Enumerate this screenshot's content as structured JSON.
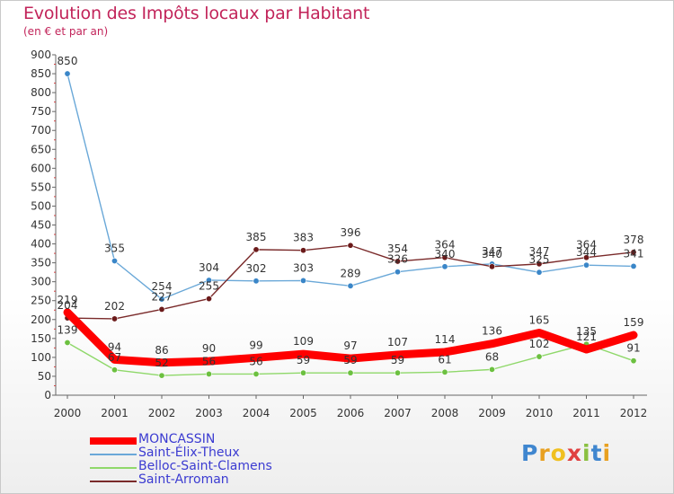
{
  "header": {
    "title": "Evolution des Impôts locaux par Habitant",
    "subtitle": "(en € et par an)"
  },
  "brand": {
    "letters": [
      "P",
      "r",
      "o",
      "x",
      "i",
      "t",
      "i"
    ]
  },
  "chart_data": {
    "type": "line",
    "title": "Evolution des Impôts locaux par Habitant",
    "subtitle": "(en € et par an)",
    "xlabel": "",
    "ylabel": "",
    "ylim": [
      0,
      900
    ],
    "yticks": [
      0,
      50,
      100,
      150,
      200,
      250,
      300,
      350,
      400,
      450,
      500,
      550,
      600,
      650,
      700,
      750,
      800,
      850,
      900
    ],
    "grid": false,
    "legend_position": "bottom-left",
    "x": [
      "2000",
      "2001",
      "2002",
      "2003",
      "2004",
      "2005",
      "2006",
      "2007",
      "2008",
      "2009",
      "2010",
      "2011",
      "2012"
    ],
    "series": [
      {
        "name": "MONCASSIN",
        "color": "#ff0000",
        "values": [
          219,
          94,
          86,
          90,
          99,
          109,
          97,
          107,
          114,
          136,
          165,
          121,
          159
        ],
        "labels": [
          "219",
          "94",
          "86",
          "90",
          "99",
          "109",
          "97",
          "107",
          "114",
          "136",
          "165",
          "121",
          "159"
        ]
      },
      {
        "name": "Saint-Élix-Theux",
        "color": "#6aa8d8",
        "marker": "#3a86c8",
        "values": [
          850,
          355,
          254,
          304,
          302,
          303,
          289,
          326,
          340,
          347,
          325,
          344,
          341
        ],
        "labels": [
          "850",
          "355",
          "254",
          "304",
          "302",
          "303",
          "289",
          "326",
          "340",
          "347",
          "325",
          "344",
          "341"
        ]
      },
      {
        "name": "Belloc-Saint-Clamens",
        "color": "#8fd86a",
        "marker": "#6cc040",
        "values": [
          139,
          67,
          52,
          56,
          56,
          59,
          59,
          59,
          61,
          68,
          102,
          135,
          91
        ],
        "labels": [
          "139",
          "67",
          "52",
          "56",
          "56",
          "59",
          "59",
          "59",
          "61",
          "68",
          "102",
          "135",
          "91"
        ]
      },
      {
        "name": "Saint-Arroman",
        "color": "#7a2a2a",
        "marker": "#6b1a1a",
        "values": [
          204,
          202,
          227,
          255,
          385,
          383,
          396,
          354,
          364,
          340,
          347,
          364,
          378
        ],
        "labels": [
          "204",
          "202",
          "227",
          "255",
          "385",
          "383",
          "396",
          "354",
          "364",
          "340",
          "347",
          "364",
          "378"
        ]
      }
    ]
  }
}
